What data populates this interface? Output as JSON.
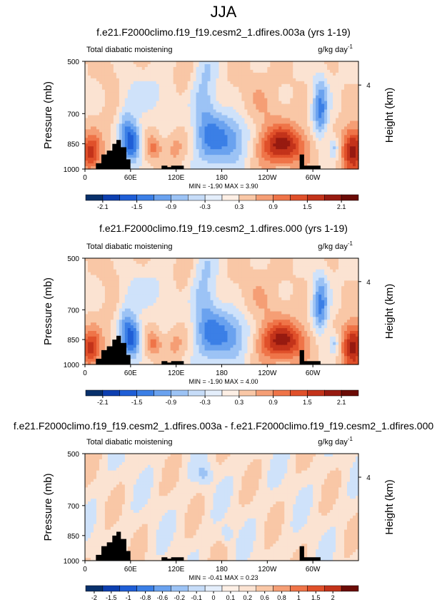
{
  "figure": {
    "title": "JJA"
  },
  "colors": {
    "scale": [
      "#08306b",
      "#0d3fb0",
      "#1f5ed6",
      "#3b7fe6",
      "#6aa2ef",
      "#9cc3f5",
      "#cfe2fa",
      "#fbe3d2",
      "#f9c7a6",
      "#f59e75",
      "#ef7448",
      "#e0502a",
      "#c3331a",
      "#971a10",
      "#6b0b06"
    ],
    "land": "#000000"
  },
  "chart_data": [
    {
      "type": "heatmap",
      "title": "f.e21.F2000climo.f19_f19.cesm2_1.dfires.003a (yrs 1-19)",
      "left_label": "Total diabatic moistening",
      "units": "g/kg day",
      "units_exp": "-1",
      "ylabel": "Pressure (mb)",
      "ylabel_right": "Height (km)",
      "x_ticks": [
        "0",
        "60E",
        "120E",
        "180",
        "120W",
        "60W"
      ],
      "y_ticks": [
        "500",
        "700",
        "850",
        "1000"
      ],
      "right_ticks": [
        "4"
      ],
      "stats": "MIN = -1.90  MAX = 3.90",
      "levels": [
        "-2.1",
        "-1.5",
        "-0.9",
        "-0.3",
        "0.3",
        "0.9",
        "1.5",
        "2.1"
      ],
      "min": -1.9,
      "max": 3.9,
      "amp": 1.0
    },
    {
      "type": "heatmap",
      "title": "f.e21.F2000climo.f19_f19.cesm2_1.dfires.000 (yrs 1-19)",
      "left_label": "Total diabatic moistening",
      "units": "g/kg day",
      "units_exp": "-1",
      "ylabel": "Pressure (mb)",
      "ylabel_right": "Height (km)",
      "x_ticks": [
        "0",
        "60E",
        "120E",
        "180",
        "120W",
        "60W"
      ],
      "y_ticks": [
        "500",
        "700",
        "850",
        "1000"
      ],
      "right_ticks": [
        "4"
      ],
      "stats": "MIN = -1.90  MAX = 4.00",
      "levels": [
        "-2.1",
        "-1.5",
        "-0.9",
        "-0.3",
        "0.3",
        "0.9",
        "1.5",
        "2.1"
      ],
      "min": -1.9,
      "max": 4.0,
      "amp": 1.0
    },
    {
      "type": "heatmap",
      "title": "f.e21.F2000climo.f19_f19.cesm2_1.dfires.003a - f.e21.F2000climo.f19_f19.cesm2_1.dfires.000",
      "left_label": "Total diabatic moistening",
      "units": "g/kg day",
      "units_exp": "-1",
      "ylabel": "Pressure (mb)",
      "ylabel_right": "Height (km)",
      "x_ticks": [
        "0",
        "60E",
        "120E",
        "180",
        "120W",
        "60W"
      ],
      "y_ticks": [
        "500",
        "700",
        "850",
        "1000"
      ],
      "right_ticks": [
        "4"
      ],
      "stats": "MIN = -0.41  MAX = 0.23",
      "levels": [
        "-2",
        "-1.5",
        "-1",
        "-0.8",
        "-0.6",
        "-0.2",
        "-0.1",
        "0",
        "0.1",
        "0.2",
        "0.6",
        "0.8",
        "1",
        "1.5",
        "2"
      ],
      "min": -0.41,
      "max": 0.23,
      "amp": 0.12
    }
  ]
}
